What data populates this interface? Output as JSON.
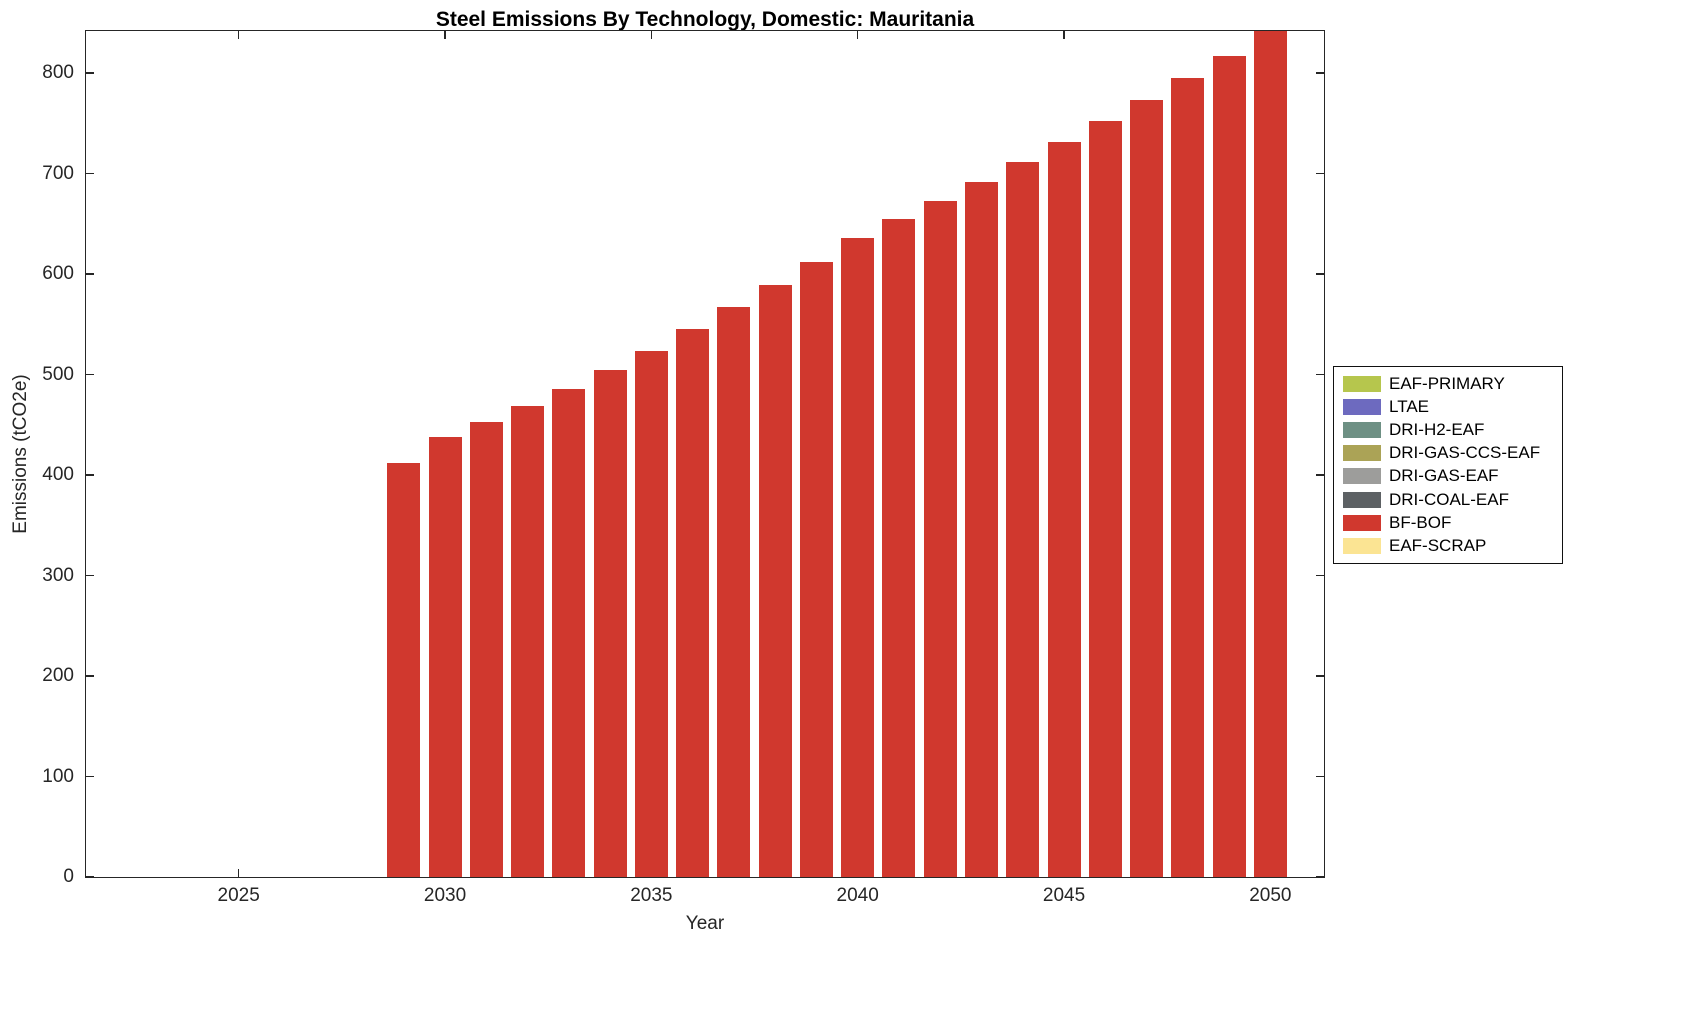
{
  "chart_data": {
    "type": "bar",
    "title": "Steel Emissions By Technology, Domestic: Mauritania",
    "xlabel": "Year",
    "ylabel": "Emissions (tCO2e)",
    "xlim": [
      2021.3,
      2051.3
    ],
    "ylim": [
      0,
      842
    ],
    "x_ticks": [
      2025,
      2030,
      2035,
      2040,
      2045,
      2050
    ],
    "y_ticks": [
      0,
      100,
      200,
      300,
      400,
      500,
      600,
      700,
      800
    ],
    "grid": false,
    "legend_position": "right-outside",
    "bar_width_years": 0.8,
    "axis_color": "#262626",
    "series": [
      {
        "name": "BF-BOF",
        "color": "#D0382E",
        "x": [
          2029,
          2030,
          2031,
          2032,
          2033,
          2034,
          2035,
          2036,
          2037,
          2038,
          2039,
          2040,
          2041,
          2042,
          2043,
          2044,
          2045,
          2046,
          2047,
          2048,
          2049,
          2050
        ],
        "values": [
          412,
          438,
          453,
          469,
          486,
          505,
          524,
          545,
          567,
          589,
          612,
          636,
          655,
          673,
          692,
          712,
          732,
          752,
          773,
          795,
          817,
          842
        ]
      }
    ],
    "legend": [
      {
        "label": "EAF-PRIMARY",
        "color": "#B6C64D"
      },
      {
        "label": "LTAE",
        "color": "#6D6ABF"
      },
      {
        "label": "DRI-H2-EAF",
        "color": "#6E9084"
      },
      {
        "label": "DRI-GAS-CCS-EAF",
        "color": "#ABA356"
      },
      {
        "label": "DRI-GAS-EAF",
        "color": "#9D9D9B"
      },
      {
        "label": "DRI-COAL-EAF",
        "color": "#5D6164"
      },
      {
        "label": "BF-BOF",
        "color": "#D0382E"
      },
      {
        "label": "EAF-SCRAP",
        "color": "#FBE493"
      }
    ]
  }
}
